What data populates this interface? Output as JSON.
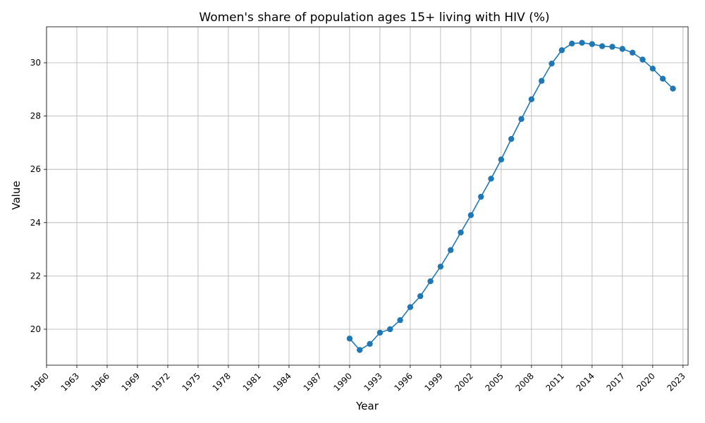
{
  "chart_data": {
    "type": "line",
    "title": "Women's share of population ages 15+ living with HIV (%)",
    "xlabel": "Year",
    "ylabel": "Value",
    "xlim": [
      1960,
      2023.5
    ],
    "ylim": [
      18.65,
      31.35
    ],
    "grid": true,
    "legend": "none",
    "x_ticks": [
      1960,
      1963,
      1966,
      1969,
      1972,
      1975,
      1978,
      1981,
      1984,
      1987,
      1990,
      1993,
      1996,
      1999,
      2002,
      2005,
      2008,
      2011,
      2014,
      2017,
      2020,
      2023
    ],
    "y_ticks": [
      20,
      22,
      24,
      26,
      28,
      30
    ],
    "series_color": "#1f77b4",
    "series": [
      {
        "x": [
          1990,
          1991,
          1992,
          1993,
          1994,
          1995,
          1996,
          1997,
          1998,
          1999,
          2000,
          2001,
          2002,
          2003,
          2004,
          2005,
          2006,
          2007,
          2008,
          2009,
          2010,
          2011,
          2012,
          2013,
          2014,
          2015,
          2016,
          2017,
          2018,
          2019,
          2020,
          2021,
          2022
        ],
        "values": [
          19.65,
          19.22,
          19.45,
          19.87,
          20.0,
          20.34,
          20.83,
          21.24,
          21.8,
          22.35,
          22.97,
          23.63,
          24.28,
          24.97,
          25.65,
          26.37,
          27.14,
          27.89,
          28.63,
          29.32,
          29.97,
          30.47,
          30.72,
          30.75,
          30.7,
          30.62,
          30.6,
          30.52,
          30.38,
          30.12,
          29.78,
          29.4,
          29.03
        ]
      }
    ]
  }
}
